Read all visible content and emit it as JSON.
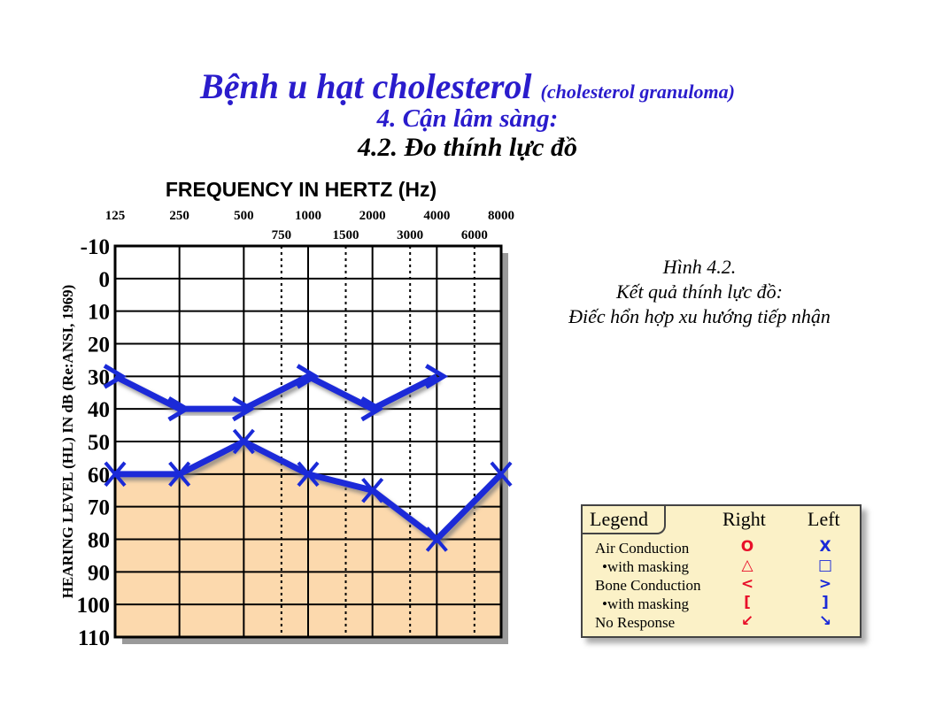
{
  "slide": {
    "title": "Bệnh u hạt cholesterol",
    "title_paren": "(cholesterol granuloma)",
    "subtitle1": "4. Cận lâm sàng:",
    "subtitle2": "4.2.  Đo thính lực đồ",
    "caption": [
      "Hình 4.2.",
      "Kết quả thính lực đồ:",
      "Điếc hổn hợp xu hướng tiếp nhận"
    ],
    "colors": {
      "title": "#2a1ccc",
      "chart_line": "#1a2ad8",
      "shade": "#fcd9ad",
      "legend_bg": "#fbf1c7",
      "right_symbols": "#e8102a",
      "left_symbols": "#1a2ad8"
    }
  },
  "chart_data": {
    "type": "line",
    "title": "FREQUENCY IN HERTZ (Hz)",
    "ylabel": "HEARING LEVEL (HL) IN dB (Re:ANSI, 1969)",
    "x_ticks_top": [
      "125",
      "250",
      "500",
      "1000",
      "2000",
      "4000",
      "8000"
    ],
    "x_ticks_bottom": [
      "750",
      "1500",
      "3000",
      "6000"
    ],
    "y_ticks": [
      "-10",
      "0",
      "10",
      "20",
      "30",
      "40",
      "50",
      "60",
      "70",
      "80",
      "90",
      "100",
      "110"
    ],
    "ylim": [
      -10,
      110
    ],
    "y_inverted": true,
    "grid": true,
    "series": [
      {
        "symbol": ">",
        "x": [
          125,
          250,
          500,
          1000,
          2000,
          4000
        ],
        "values": [
          30,
          40,
          40,
          30,
          40,
          30
        ]
      },
      {
        "symbol": "x",
        "x": [
          125,
          250,
          500,
          1000,
          2000,
          4000,
          8000
        ],
        "values": [
          60,
          60,
          50,
          60,
          65,
          80,
          60
        ],
        "shaded_below": true
      }
    ]
  },
  "legend": {
    "title": "Legend",
    "col_right": "Right",
    "col_left": "Left",
    "rows": [
      {
        "label": "Air Conduction",
        "right_symbol": "O",
        "left_symbol": "X"
      },
      {
        "label": "•with masking",
        "right_symbol": "△",
        "left_symbol": "□"
      },
      {
        "label": "Bone Conduction",
        "right_symbol": "<",
        "left_symbol": ">"
      },
      {
        "label": "•with masking",
        "right_symbol": "[",
        "left_symbol": "]"
      },
      {
        "label": "No Response",
        "right_symbol": "↙",
        "left_symbol": "↘"
      }
    ]
  }
}
